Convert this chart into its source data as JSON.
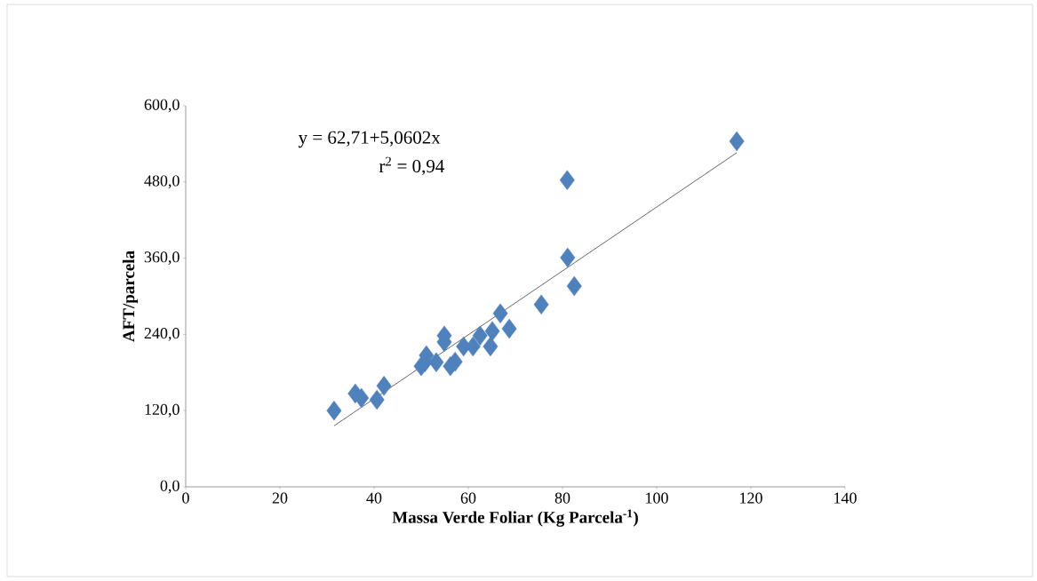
{
  "chart_data": {
    "type": "scatter",
    "xlabel": "Massa Verde Foliar (Kg Parcela$^{-1}$)",
    "ylabel": "AFT/parcela",
    "annotations": [
      "y =  62,71+5,0602x",
      "r$^{2}$ = 0,94"
    ],
    "xlim": [
      0,
      140
    ],
    "xticks": [
      0,
      20,
      40,
      60,
      80,
      100,
      120,
      140
    ],
    "ylim": [
      0,
      600
    ],
    "yticks": [
      {
        "value": 0,
        "label": "0,0"
      },
      {
        "value": 120,
        "label": "120,0"
      },
      {
        "value": 240,
        "label": "240,0"
      },
      {
        "value": 360,
        "label": "360,0"
      },
      {
        "value": 480,
        "label": "480,0"
      },
      {
        "value": 600,
        "label": "600,0"
      }
    ],
    "grid": false,
    "marker": "diamond",
    "series": [
      {
        "color": "#4f81bd",
        "x": [
          31.5,
          36,
          37.3,
          40.6,
          42.1,
          50,
          50.8,
          51.1,
          53.2,
          54.9,
          54.9,
          56.2,
          57.2,
          59,
          61,
          62.5,
          64.7,
          65.1,
          66.8,
          68.7,
          75.5,
          81,
          81.1,
          82.5,
          117
        ],
        "values": [
          120,
          147,
          140,
          137,
          159,
          190,
          196,
          207,
          196,
          228,
          238,
          190,
          197,
          221,
          221,
          238,
          221,
          245,
          273,
          249,
          287,
          483,
          361,
          316,
          544
        ]
      },
      {
        "type": "line",
        "color": "#000000",
        "marker": "none",
        "x": [
          31.5,
          117
        ],
        "values": [
          96,
          526
        ]
      }
    ]
  }
}
